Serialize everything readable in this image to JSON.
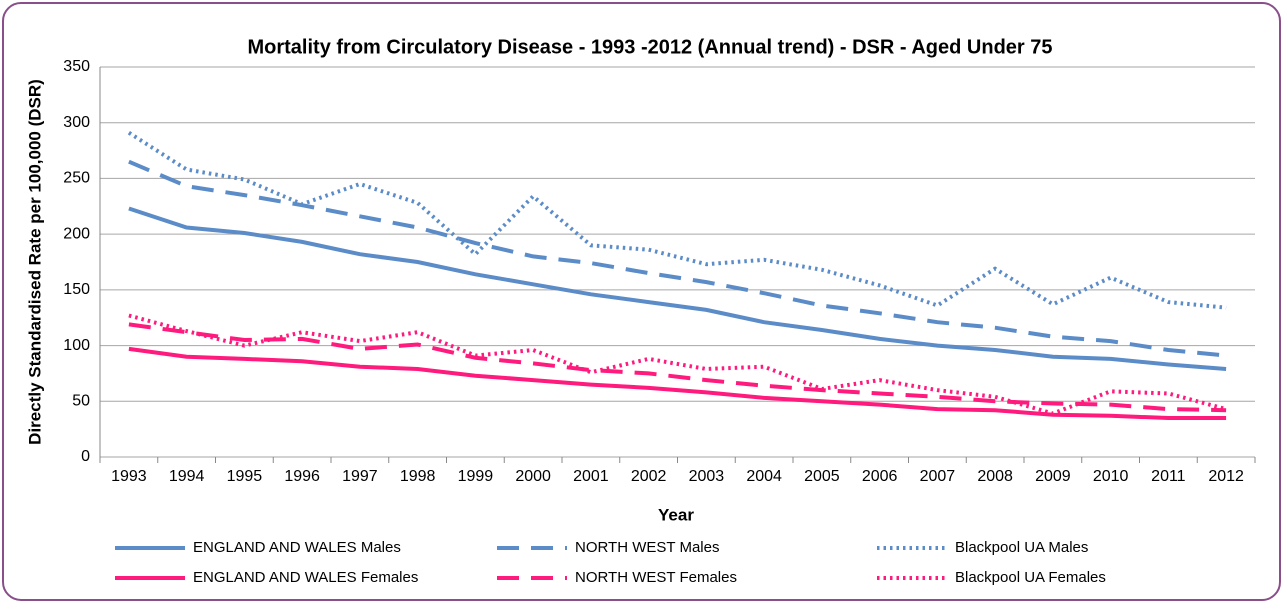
{
  "chart_data": {
    "type": "line",
    "title": "Mortality from Circulatory Disease - 1993 -2012 (Annual trend) - DSR - Aged Under 75",
    "x_label": "Year",
    "y_label": "Directly Standardised Rate per 100,000 (DSR)",
    "categories": [
      "1993",
      "1994",
      "1995",
      "1996",
      "1997",
      "1998",
      "1999",
      "2000",
      "2001",
      "2002",
      "2003",
      "2004",
      "2005",
      "2006",
      "2007",
      "2008",
      "2009",
      "2010",
      "2011",
      "2012"
    ],
    "ylim": [
      0,
      350
    ],
    "yticks": [
      0,
      50,
      100,
      150,
      200,
      250,
      300,
      350
    ],
    "grid": true,
    "legend": "bottom",
    "series": [
      {
        "name": "ENGLAND AND WALES Males",
        "color": "#5b8cc8",
        "dash": "solid",
        "values": [
          223,
          206,
          201,
          193,
          182,
          175,
          164,
          155,
          146,
          139,
          132,
          121,
          114,
          106,
          100,
          96,
          90,
          88,
          83,
          79
        ]
      },
      {
        "name": "NORTH WEST Males",
        "color": "#5b8cc8",
        "dash": "dashed",
        "values": [
          265,
          243,
          235,
          226,
          216,
          206,
          192,
          180,
          174,
          165,
          157,
          147,
          136,
          129,
          121,
          116,
          108,
          104,
          96,
          91
        ]
      },
      {
        "name": "Blackpool UA Males",
        "color": "#5b8cc8",
        "dash": "dotted",
        "values": [
          291,
          258,
          249,
          227,
          245,
          228,
          182,
          234,
          190,
          186,
          173,
          177,
          168,
          154,
          136,
          169,
          137,
          161,
          139,
          134
        ]
      },
      {
        "name": "ENGLAND AND WALES Females",
        "color": "#ff1a7e",
        "dash": "solid",
        "values": [
          97,
          90,
          88,
          86,
          81,
          79,
          73,
          69,
          65,
          62,
          58,
          53,
          50,
          47,
          43,
          42,
          38,
          37,
          35,
          35
        ]
      },
      {
        "name": "NORTH WEST Females",
        "color": "#ff1a7e",
        "dash": "dashed",
        "values": [
          119,
          112,
          105,
          106,
          97,
          101,
          89,
          84,
          78,
          75,
          69,
          64,
          60,
          57,
          54,
          50,
          48,
          47,
          43,
          42
        ]
      },
      {
        "name": "Blackpool UA Females",
        "color": "#ff1a7e",
        "dash": "dotted",
        "values": [
          127,
          113,
          100,
          112,
          104,
          112,
          91,
          96,
          76,
          88,
          79,
          81,
          61,
          69,
          60,
          54,
          39,
          59,
          57,
          43
        ]
      }
    ]
  }
}
